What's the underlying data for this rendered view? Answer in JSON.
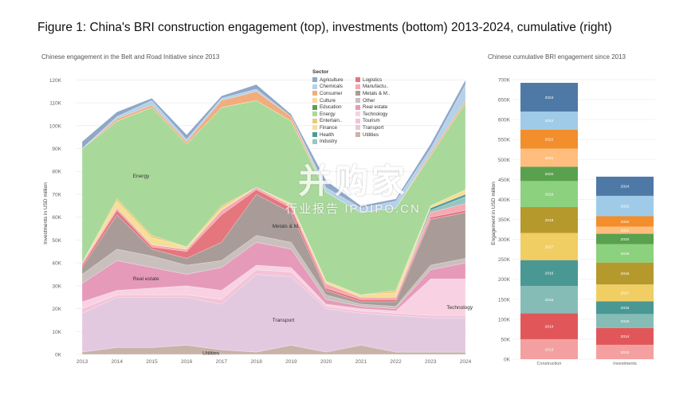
{
  "figure_title": "Figure 1: China's BRI construction engagement (top), investments (bottom) 2013-2024, cumulative (right)",
  "watermark": {
    "main": "并购家",
    "sub": "行业报告 IPOIPO.CN"
  },
  "chart_data": [
    {
      "type": "area",
      "subtitle": "Chinese engagement in the Belt and Road Initiative since 2013",
      "ylabel": "Investments in USD million",
      "xlabel": "",
      "x": [
        "2013",
        "2014",
        "2015",
        "2016",
        "2017",
        "2018",
        "2019",
        "2020",
        "2021",
        "2022",
        "2023",
        "2024"
      ],
      "y_ticks": [
        "0K",
        "10K",
        "20K",
        "30K",
        "40K",
        "50K",
        "60K",
        "70K",
        "80K",
        "90K",
        "100K",
        "110K",
        "120K"
      ],
      "ylim": [
        0,
        125000
      ],
      "stacked": true,
      "grid": true,
      "legend": {
        "title": "Sector",
        "position": "top-right-inside"
      },
      "series": [
        {
          "name": "Utilities",
          "color": "#c8b3a8",
          "values": [
            1000,
            3000,
            3000,
            4000,
            2000,
            1000,
            4000,
            1000,
            4000,
            1000,
            1000,
            1000
          ]
        },
        {
          "name": "Transport",
          "color": "#e3c9e0",
          "values": [
            17000,
            22000,
            22000,
            21000,
            20000,
            34000,
            30000,
            19000,
            14000,
            16000,
            15000,
            15000
          ]
        },
        {
          "name": "Tourism",
          "color": "#f3c3d7",
          "values": [
            2000,
            1000,
            1000,
            1000,
            2000,
            2000,
            2000,
            1000,
            1000,
            1000,
            1000,
            1000
          ]
        },
        {
          "name": "Technology",
          "color": "#f8d2e2",
          "values": [
            3000,
            2000,
            3000,
            4000,
            4000,
            2000,
            2000,
            1000,
            1000,
            1000,
            16000,
            16000
          ]
        },
        {
          "name": "Real estate",
          "color": "#e69aba",
          "values": [
            8000,
            13000,
            9000,
            5000,
            10000,
            10000,
            8000,
            2000,
            1000,
            1000,
            4000,
            7000
          ]
        },
        {
          "name": "Other",
          "color": "#c9c0bd",
          "values": [
            4000,
            5000,
            5000,
            4000,
            3000,
            3000,
            3000,
            2000,
            1000,
            1000,
            2000,
            2000
          ]
        },
        {
          "name": "Metals & Mining",
          "color": "#a99c98",
          "values": [
            3000,
            15000,
            3000,
            3000,
            8000,
            18000,
            13000,
            2000,
            1000,
            2000,
            20000,
            20000
          ]
        },
        {
          "name": "Logistics",
          "color": "#e5767e",
          "values": [
            1000,
            2000,
            1000,
            3000,
            12000,
            2000,
            2000,
            1000,
            1000,
            1000,
            1000,
            1000
          ]
        },
        {
          "name": "Manufacturing",
          "color": "#f5a9b3",
          "values": [
            1000,
            1000,
            1000,
            1000,
            2000,
            1000,
            1000,
            2000,
            1000,
            1000,
            2000,
            3000
          ]
        },
        {
          "name": "Industry",
          "color": "#97c6c1",
          "values": [
            0,
            0,
            0,
            0,
            0,
            0,
            0,
            0,
            0,
            0,
            1000,
            3000
          ]
        },
        {
          "name": "Health",
          "color": "#4f9a98",
          "values": [
            0,
            0,
            0,
            0,
            0,
            0,
            0,
            0,
            0,
            0,
            1000,
            1000
          ]
        },
        {
          "name": "Finance",
          "color": "#f5df96",
          "values": [
            0,
            3000,
            3000,
            1000,
            1000,
            0,
            1000,
            1000,
            1000,
            2000,
            1000,
            2000
          ]
        },
        {
          "name": "Entertainment",
          "color": "#f0c87a",
          "values": [
            0,
            1000,
            1000,
            0,
            1000,
            0,
            0,
            0,
            0,
            1000,
            0,
            0
          ]
        },
        {
          "name": "Energy",
          "color": "#a9d99a",
          "values": [
            50000,
            34000,
            56000,
            45000,
            43000,
            38000,
            36000,
            39000,
            36000,
            36000,
            22000,
            38000
          ]
        },
        {
          "name": "Education",
          "color": "#59a14f",
          "values": [
            0,
            0,
            0,
            0,
            0,
            0,
            0,
            0,
            0,
            0,
            0,
            0
          ]
        },
        {
          "name": "Culture",
          "color": "#f6d99b",
          "values": [
            0,
            0,
            0,
            0,
            0,
            0,
            0,
            0,
            0,
            0,
            0,
            0
          ]
        },
        {
          "name": "Consumer",
          "color": "#f2ad7c",
          "values": [
            0,
            1000,
            1000,
            1000,
            3000,
            4000,
            2000,
            0,
            0,
            0,
            1000,
            1000
          ]
        },
        {
          "name": "Chemicals",
          "color": "#b5d2ea",
          "values": [
            0,
            1000,
            2000,
            1000,
            1000,
            1000,
            0,
            2000,
            2000,
            3000,
            2000,
            7000
          ]
        },
        {
          "name": "Agriculture",
          "color": "#8fa8c8",
          "values": [
            3000,
            2000,
            1000,
            2000,
            1000,
            2000,
            1000,
            3000,
            1000,
            1000,
            2000,
            2000
          ]
        }
      ],
      "legend_entries": [
        "Agriculture",
        "Chemicals",
        "Consumer",
        "Culture",
        "Education",
        "Energy",
        "Entertain..",
        "Finance",
        "Health",
        "Industry",
        "Logistics",
        "Manufactu..",
        "Metals & M..",
        "Other",
        "Real estate",
        "Technology",
        "Tourism",
        "Transport",
        "Utilities"
      ],
      "annotations": [
        {
          "text": "Energy",
          "x": "2014",
          "y": 78000
        },
        {
          "text": "Metals & M..",
          "x": "2018",
          "y": 56000
        },
        {
          "text": "Real estate",
          "x": "2014",
          "y": 33000
        },
        {
          "text": "Transport",
          "x": "2018",
          "y": 15000
        },
        {
          "text": "Technology",
          "x": "2023",
          "y": 20500
        },
        {
          "text": "Utilities",
          "x": "2016",
          "y": 500
        }
      ]
    },
    {
      "type": "bar",
      "stacked": true,
      "subtitle": "Chinese cumulative BRI engagement since 2013",
      "ylabel": "Engagement in USD million",
      "xlabel": "",
      "categories": [
        "Construction",
        "Investments"
      ],
      "y_ticks": [
        "0K",
        "50K",
        "100K",
        "150K",
        "200K",
        "250K",
        "300K",
        "350K",
        "400K",
        "450K",
        "500K",
        "550K",
        "600K",
        "650K",
        "700K"
      ],
      "ylim": [
        0,
        700000
      ],
      "series": [
        {
          "name": "2013",
          "segment_labels": [
            "2013",
            "2013"
          ],
          "colors": [
            "#f4a0a0",
            "#f4a0a0"
          ],
          "values": [
            50000,
            36000
          ]
        },
        {
          "name": "2014",
          "segment_labels": [
            "2014",
            "2014"
          ],
          "colors": [
            "#e15759",
            "#e15759"
          ],
          "values": [
            65000,
            42000
          ]
        },
        {
          "name": "2015",
          "segment_labels": [
            "2015",
            "2015"
          ],
          "colors": [
            "#86bcb6",
            "#86bcb6"
          ],
          "values": [
            68000,
            35000
          ]
        },
        {
          "name": "2016",
          "segment_labels": [
            "2016",
            "2016"
          ],
          "colors": [
            "#499894",
            "#499894"
          ],
          "values": [
            65000,
            32000
          ]
        },
        {
          "name": "2017",
          "segment_labels": [
            "2017",
            "2017"
          ],
          "colors": [
            "#f1ce63",
            "#f1ce63"
          ],
          "values": [
            68000,
            42000
          ]
        },
        {
          "name": "2018",
          "segment_labels": [
            "2018",
            "2018"
          ],
          "colors": [
            "#b6992d",
            "#b6992d"
          ],
          "values": [
            65000,
            55000
          ]
        },
        {
          "name": "2019",
          "segment_labels": [
            "2019",
            "2019"
          ],
          "colors": [
            "#8cd17d",
            "#8cd17d"
          ],
          "values": [
            65000,
            46000
          ]
        },
        {
          "name": "2020",
          "segment_labels": [
            "2020",
            "2020"
          ],
          "colors": [
            "#59a14f",
            "#59a14f"
          ],
          "values": [
            36000,
            26000
          ]
        },
        {
          "name": "2021",
          "segment_labels": [
            "2021",
            "2021"
          ],
          "colors": [
            "#ffbe7d",
            "#ffbe7d"
          ],
          "values": [
            45000,
            18000
          ]
        },
        {
          "name": "2022",
          "segment_labels": [
            "2022",
            "2022"
          ],
          "colors": [
            "#f28e2b",
            "#f28e2b"
          ],
          "values": [
            48000,
            26000
          ]
        },
        {
          "name": "2023",
          "segment_labels": [
            "2023",
            "2023"
          ],
          "colors": [
            "#a0cbe8",
            "#a0cbe8"
          ],
          "values": [
            45000,
            51000
          ]
        },
        {
          "name": "2024",
          "segment_labels": [
            "2024",
            "2024"
          ],
          "colors": [
            "#4e79a7",
            "#4e79a7"
          ],
          "values": [
            72000,
            48000
          ]
        }
      ]
    }
  ]
}
